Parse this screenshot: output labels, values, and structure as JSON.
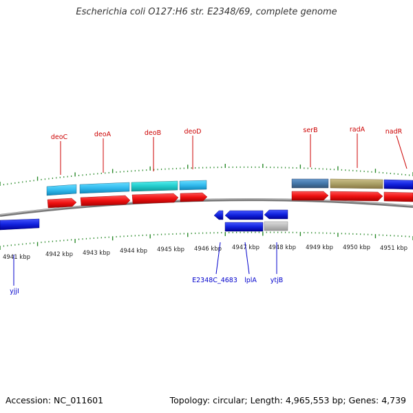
{
  "title": "Escherichia coli O127:H6 str. E2348/69, complete genome",
  "footer": {
    "accession": "Accession: NC_011601",
    "summary": "Topology: circular; Length: 4,965,553 bp; Genes: 4,739"
  },
  "colors": {
    "backbone": "#888888",
    "forward_label": "#cc0000",
    "reverse_label": "#0000cc",
    "tick": "#2a8a2a",
    "cds": "#ee1111",
    "gene_light_blue": "#33bbee",
    "gene_teal": "#22cccc",
    "gene_steel": "#4477aa",
    "gene_olive": "#aaa066",
    "gene_blue": "#1122dd",
    "gene_grey": "#bbbbbb"
  },
  "scale": {
    "unit": "kbp",
    "ticks": [
      "4941 kbp",
      "4942 kbp",
      "4943 kbp",
      "4944 kbp",
      "4945 kbp",
      "4946 kbp",
      "4947 kbp",
      "4948 kbp",
      "4949 kbp",
      "4950 kbp",
      "4951 kbp"
    ]
  },
  "gene_labels_forward": [
    "deoC",
    "deoA",
    "deoB",
    "deoD",
    "serB",
    "radA",
    "nadR"
  ],
  "gene_labels_reverse": [
    "yjjI",
    "E2348C_4683",
    "lplA",
    "ytjB"
  ]
}
